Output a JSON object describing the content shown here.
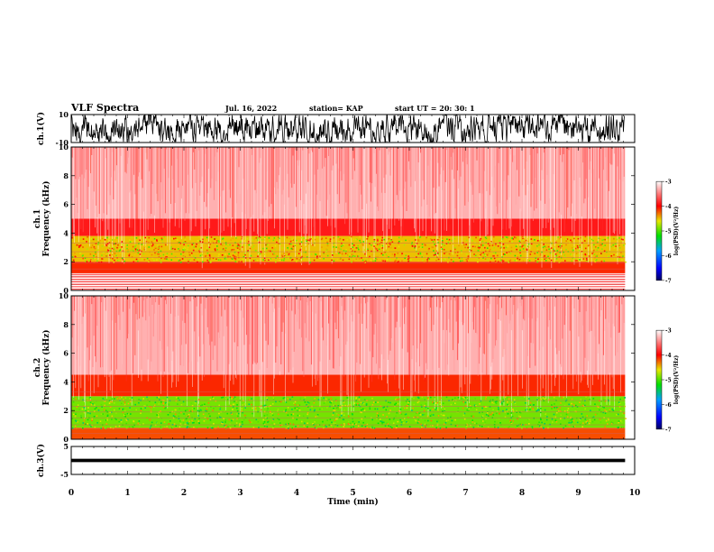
{
  "header": {
    "title": "VLF Spectra",
    "date": "Jul. 16, 2022",
    "station": "station= KAP",
    "start": "start UT =  20: 30: 1"
  },
  "chart_data": [
    {
      "type": "line",
      "panel": "ch1-waveform",
      "ylabel": "ch.1(V)",
      "ylim": [
        -10,
        10
      ],
      "yticks": [
        "10",
        "-10"
      ],
      "xlim": [
        0,
        10
      ],
      "data_end_min": 9.83,
      "note_style": "dense noisy trace filling most of range",
      "color": "#000000"
    },
    {
      "type": "heatmap",
      "panel": "ch1-spectrogram",
      "ylabel": "ch.1\nFrequency (kHz)",
      "ylim": [
        0,
        10
      ],
      "yticks": [
        "0",
        "2",
        "4",
        "6",
        "8",
        "10"
      ],
      "xlim": [
        0,
        10
      ],
      "data_end_min": 9.83,
      "colorbar": {
        "label": "log(PSD)(V²/Hz)",
        "range": [
          -7,
          -3
        ],
        "ticks": [
          "-3",
          "-4",
          "-5",
          "-6",
          "-7"
        ]
      },
      "bands": [
        {
          "from_khz": 0,
          "to_khz": 1.2,
          "level": "sparse red lines"
        },
        {
          "from_khz": 1.2,
          "to_khz": 2.0,
          "level": -4.1
        },
        {
          "from_khz": 2.0,
          "to_khz": 3.8,
          "level": -4.5
        },
        {
          "from_khz": 3.8,
          "to_khz": 5.0,
          "level": -3.9
        },
        {
          "from_khz": 5.0,
          "to_khz": 10,
          "level": -3.3
        }
      ]
    },
    {
      "type": "heatmap",
      "panel": "ch2-spectrogram",
      "ylabel": "ch.2\nFrequency (kHz)",
      "ylim": [
        0,
        10
      ],
      "yticks": [
        "0",
        "2",
        "4",
        "6",
        "8",
        "10"
      ],
      "xlim": [
        0,
        10
      ],
      "data_end_min": 9.83,
      "colorbar": {
        "label": "log(PSD)(V²/Hz)",
        "range": [
          -7,
          -3
        ],
        "ticks": [
          "-3",
          "-4",
          "-5",
          "-6",
          "-7"
        ]
      },
      "bands": [
        {
          "from_khz": 0,
          "to_khz": 0.8,
          "level": -4.2
        },
        {
          "from_khz": 0.8,
          "to_khz": 3.0,
          "level": -4.9
        },
        {
          "from_khz": 3.0,
          "to_khz": 4.5,
          "level": -4.1
        },
        {
          "from_khz": 4.5,
          "to_khz": 10,
          "level": -3.3
        }
      ]
    },
    {
      "type": "line",
      "panel": "ch3-waveform",
      "ylabel": "ch.3(V)",
      "ylim": [
        -5,
        5
      ],
      "yticks": [
        "5",
        "-5"
      ],
      "xlim": [
        0,
        10
      ],
      "data_end_min": 9.83,
      "band_volts": [
        -0.6,
        0.6
      ],
      "color": "#000000"
    }
  ],
  "xaxis": {
    "label": "Time (min)",
    "ticks": [
      "0",
      "1",
      "2",
      "3",
      "4",
      "5",
      "6",
      "7",
      "8",
      "9",
      "10"
    ]
  }
}
